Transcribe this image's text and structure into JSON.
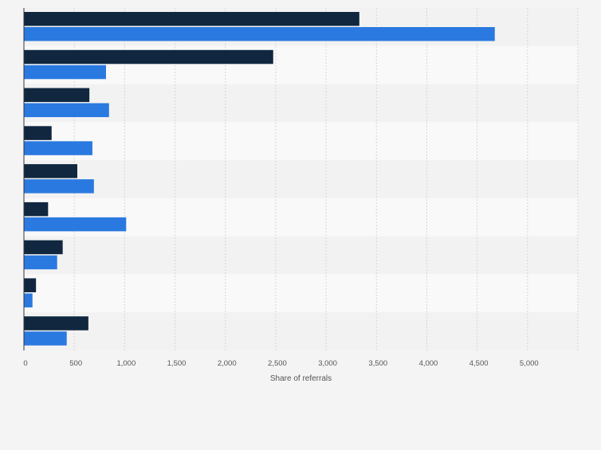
{
  "chart_data": {
    "type": "bar",
    "orientation": "horizontal",
    "categories": [
      "",
      "",
      "",
      "",
      "",
      "",
      "",
      "",
      ""
    ],
    "series": [
      {
        "color": "#10273f",
        "values": [
          3330,
          2475,
          650,
          275,
          530,
          240,
          385,
          120,
          640
        ]
      },
      {
        "color": "#2a79e0",
        "values": [
          4675,
          815,
          845,
          680,
          695,
          1015,
          330,
          85,
          425
        ]
      }
    ],
    "x_ticks": [
      "0",
      "500",
      "1,000",
      "1,500",
      "2,000",
      "2,500",
      "3,000",
      "3,500",
      "4,000",
      "4,500",
      "5,000"
    ],
    "x_tick_values": [
      0,
      500,
      1000,
      1500,
      2000,
      2500,
      3000,
      3500,
      4000,
      4500,
      5000
    ],
    "xlim": [
      0,
      5500
    ],
    "xlabel": "Share of referrals",
    "ylabel": "",
    "grid": true,
    "legend": "none"
  }
}
